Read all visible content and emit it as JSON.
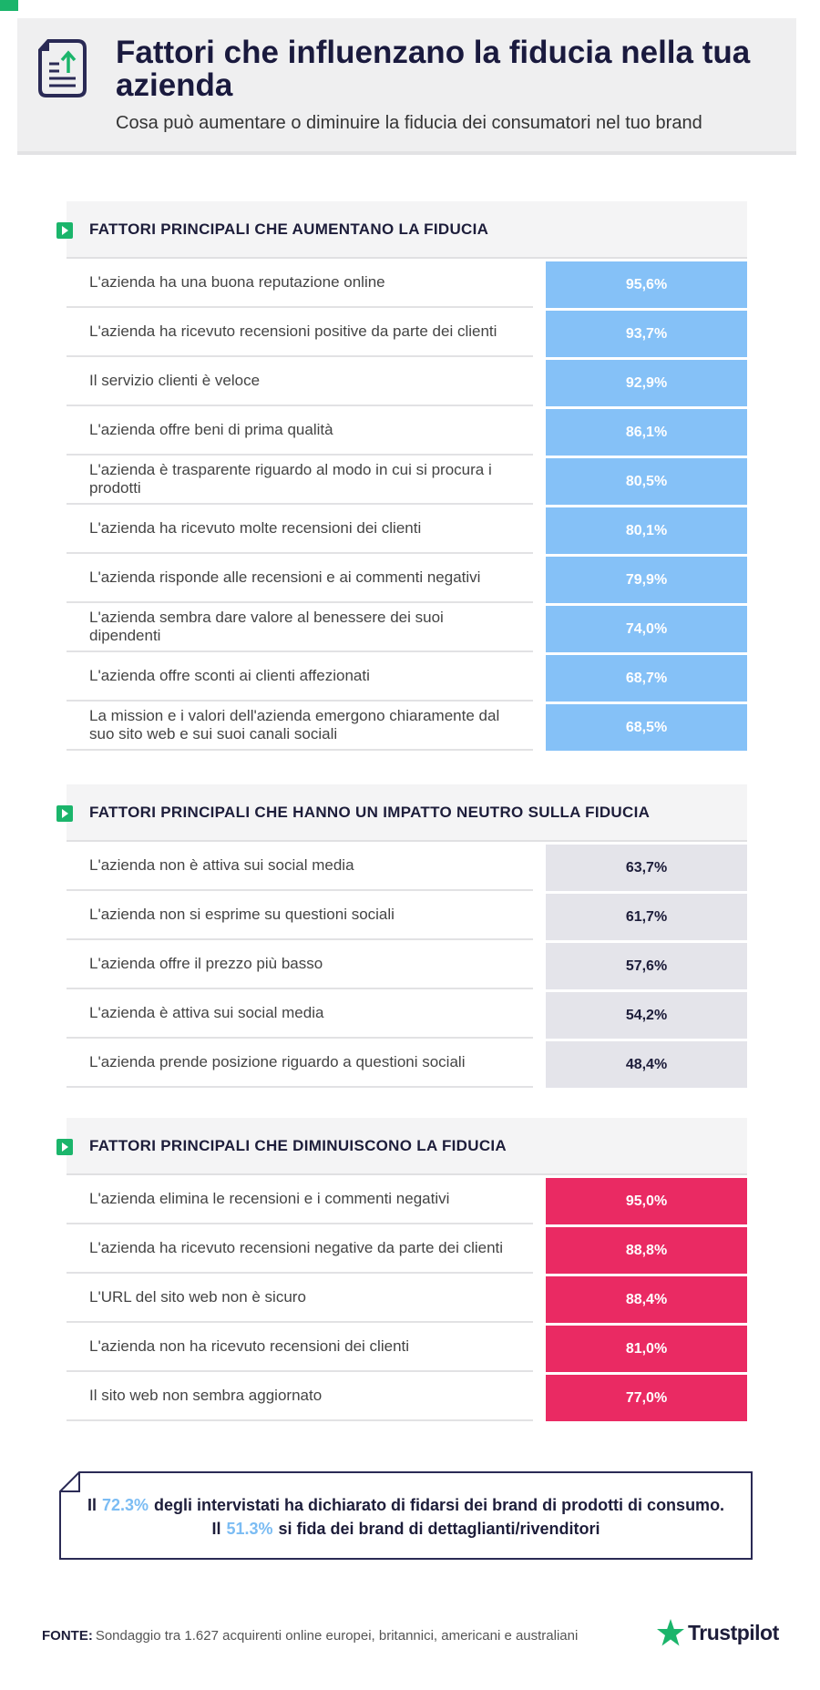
{
  "header": {
    "title": "Fattori che influenzano la fiducia nella tua azienda",
    "subtitle": "Cosa può aumentare o diminuire la fiducia dei consumatori nel tuo brand"
  },
  "sections": [
    {
      "title": "FATTORI PRINCIPALI CHE AUMENTANO LA FIDUCIA",
      "rows": [
        {
          "label": "L'azienda ha una buona reputazione online",
          "value": "95,6%"
        },
        {
          "label": "L'azienda ha ricevuto recensioni positive da parte dei clienti",
          "value": "93,7%"
        },
        {
          "label": "Il servizio clienti è veloce",
          "value": "92,9%"
        },
        {
          "label": "L'azienda offre beni di prima qualità",
          "value": "86,1%"
        },
        {
          "label": "L'azienda è trasparente riguardo al modo in cui si procura i prodotti",
          "value": "80,5%"
        },
        {
          "label": "L'azienda ha ricevuto molte recensioni dei clienti",
          "value": "80,1%"
        },
        {
          "label": "L'azienda risponde alle recensioni e ai commenti negativi",
          "value": "79,9%"
        },
        {
          "label": "L'azienda sembra dare valore al benessere dei suoi dipendenti",
          "value": "74,0%"
        },
        {
          "label": "L'azienda offre sconti ai clienti affezionati",
          "value": "68,7%"
        },
        {
          "label": "La mission e i valori dell'azienda emergono chiaramente dal suo sito web e sui suoi canali sociali",
          "value": "68,5%"
        }
      ]
    },
    {
      "title": "FATTORI PRINCIPALI CHE HANNO UN IMPATTO NEUTRO SULLA FIDUCIA",
      "rows": [
        {
          "label": "L'azienda non è attiva sui social media",
          "value": "63,7%"
        },
        {
          "label": "L'azienda non si esprime su questioni sociali",
          "value": "61,7%"
        },
        {
          "label": "L'azienda offre il prezzo più basso",
          "value": "57,6%"
        },
        {
          "label": "L'azienda è attiva sui social media",
          "value": "54,2%"
        },
        {
          "label": "L'azienda prende posizione riguardo a questioni sociali",
          "value": "48,4%"
        }
      ]
    },
    {
      "title": "FATTORI PRINCIPALI CHE DIMINUISCONO LA FIDUCIA",
      "rows": [
        {
          "label": "L'azienda elimina le recensioni e i commenti negativi",
          "value": "95,0%"
        },
        {
          "label": "L'azienda ha ricevuto recensioni negative da parte dei clienti",
          "value": "88,8%"
        },
        {
          "label": "L'URL del sito web non è sicuro",
          "value": "88,4%"
        },
        {
          "label": "L'azienda non ha ricevuto recensioni dei clienti",
          "value": "81,0%"
        },
        {
          "label": "Il sito web non sembra aggiornato",
          "value": "77,0%"
        }
      ]
    }
  ],
  "callout": [
    {
      "prefix": "Il",
      "highlight": "72.3%",
      "suffix": "degli intervistati ha dichiarato di fidarsi dei brand di prodotti di consumo."
    },
    {
      "prefix": "Il",
      "highlight": "51.3%",
      "suffix": "si fida dei brand di dettaglianti/rivenditori"
    }
  ],
  "footer": {
    "source_label": "FONTE:",
    "source_text": "Sondaggio tra 1.627 acquirenti online europei, britannici, americani e australiani",
    "logo": "Trustpilot"
  }
}
